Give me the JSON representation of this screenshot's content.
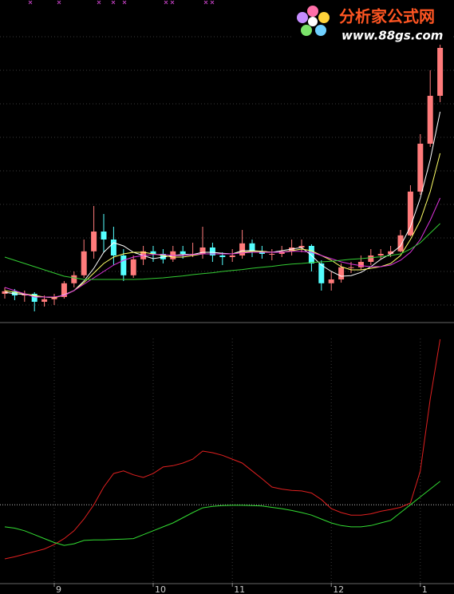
{
  "chart_data": [
    {
      "type": "candlestick",
      "ylim": [
        0,
        100
      ],
      "grid": true,
      "up_color": "#ff7b7b",
      "down_color": "#54ffff",
      "open": [
        8,
        8.8,
        7.5,
        8,
        5.5,
        6.3,
        7,
        11.3,
        13.8,
        21.3,
        27.5,
        25,
        20,
        13.8,
        18.8,
        21.3,
        20.5,
        18.8,
        21.3,
        20.5,
        20.5,
        22.5,
        20,
        19.5,
        20,
        23.8,
        21.3,
        20.5,
        20.5,
        21.3,
        22.5,
        23,
        17.5,
        11.3,
        12.5,
        16.3,
        16.3,
        18,
        20,
        20.5,
        21.3,
        26.3,
        40,
        55,
        70
      ],
      "high": [
        10,
        9.5,
        9,
        8.5,
        7.5,
        8,
        12,
        15,
        25,
        35.5,
        33,
        29,
        22,
        20,
        23,
        23,
        22,
        23,
        23,
        24,
        29,
        24,
        21,
        22,
        28,
        25,
        23,
        22,
        23,
        25,
        25,
        23.5,
        18.5,
        15,
        17.5,
        18,
        20,
        22,
        22,
        23,
        28,
        42,
        58,
        78,
        95
      ],
      "low": [
        6.5,
        6,
        5.5,
        2.5,
        4,
        4.5,
        6.5,
        10,
        13,
        19,
        21,
        17,
        12,
        13,
        17,
        18,
        17.5,
        18,
        19,
        19.5,
        19,
        18,
        17,
        18,
        19,
        19.5,
        19,
        18.5,
        19.5,
        20,
        21,
        15,
        9,
        9,
        11.5,
        14.5,
        15.5,
        17,
        19,
        19.5,
        21,
        26,
        39,
        54,
        68
      ],
      "close": [
        8.8,
        7.5,
        8,
        5.5,
        6.3,
        7,
        11.3,
        13.8,
        21.3,
        27.5,
        25,
        20,
        13.8,
        18.8,
        21.3,
        20.5,
        18.8,
        21.3,
        20.5,
        20.5,
        22.5,
        20,
        19.5,
        20,
        23.8,
        21.3,
        20.5,
        20.5,
        21.3,
        22.5,
        23,
        17.5,
        11.3,
        12.5,
        16.3,
        16.3,
        18,
        20,
        20.5,
        21.3,
        26.3,
        40,
        55,
        70,
        85
      ],
      "series": [
        {
          "color": "#ffffff",
          "values": [
            8.5,
            8,
            7.8,
            7.3,
            7,
            6.8,
            7.7,
            9,
            12,
            16,
            21,
            24,
            23,
            21,
            20,
            19,
            19.5,
            20,
            20.3,
            20.3,
            21,
            21,
            20.7,
            20.5,
            21.5,
            21.5,
            21.3,
            21,
            21.5,
            22,
            22.5,
            20,
            17,
            15,
            13.5,
            13.7,
            14.7,
            16.5,
            18.8,
            20.5,
            23,
            29,
            38,
            50,
            65
          ]
        },
        {
          "color": "#ffff66",
          "values": [
            9,
            8.5,
            8,
            7.5,
            7,
            6.8,
            7.5,
            9,
            11.5,
            14.5,
            17.5,
            19.5,
            20.5,
            21,
            21,
            20.5,
            20,
            19.5,
            19.5,
            20,
            20.5,
            20.5,
            20.5,
            20.5,
            21,
            21.3,
            21.3,
            21,
            21,
            21.5,
            22,
            21.5,
            20,
            18.5,
            16.5,
            15.5,
            15.5,
            16,
            16.5,
            17.5,
            20,
            25,
            31,
            40,
            52
          ]
        },
        {
          "color": "#dd33dd",
          "values": [
            10,
            9,
            8,
            7,
            7,
            7,
            7.5,
            9,
            11,
            13,
            15,
            17,
            18.5,
            19.5,
            20,
            20.3,
            20.3,
            20,
            20,
            20.3,
            20.5,
            20.5,
            20.5,
            20.5,
            20.8,
            21,
            21,
            21,
            21,
            21.3,
            21.3,
            21,
            20,
            19,
            18,
            17.3,
            16.8,
            16.5,
            16.5,
            17,
            18.5,
            21,
            25,
            31,
            38
          ]
        },
        {
          "color": "#33cc33",
          "values": [
            19.5,
            18.5,
            17.5,
            16.5,
            15.5,
            14.5,
            13.5,
            13,
            12.5,
            12.5,
            12.5,
            12.5,
            12.5,
            12.5,
            12.6,
            12.8,
            13,
            13.3,
            13.6,
            14,
            14.3,
            14.6,
            15,
            15.3,
            15.6,
            16,
            16.3,
            16.6,
            17,
            17.3,
            17.5,
            17.8,
            18,
            18.2,
            18.5,
            18.8,
            19,
            19.3,
            19.6,
            20,
            20.5,
            22,
            24,
            27,
            30
          ]
        }
      ]
    },
    {
      "type": "line",
      "ylim": [
        -30,
        70
      ],
      "hline": 0,
      "categories": [
        null,
        null,
        null,
        null,
        null,
        "9",
        null,
        null,
        null,
        null,
        null,
        null,
        null,
        null,
        null,
        "10",
        null,
        null,
        null,
        null,
        null,
        null,
        null,
        "11",
        null,
        null,
        null,
        null,
        null,
        null,
        null,
        null,
        null,
        "12",
        null,
        null,
        null,
        null,
        null,
        null,
        null,
        null,
        "1",
        null,
        null
      ],
      "series": [
        {
          "color": "#e02020",
          "values": [
            -20.8,
            -20,
            -19,
            -18,
            -17,
            -15.3,
            -13,
            -10,
            -5.5,
            0,
            6.8,
            12,
            13,
            11.5,
            10.5,
            12,
            14.5,
            15,
            16,
            17.5,
            20.6,
            20,
            19,
            17.5,
            16,
            13,
            10,
            6.8,
            6,
            5.5,
            5.3,
            4.5,
            2,
            -1.5,
            -3,
            -4,
            -4,
            -3.5,
            -2.5,
            -1.8,
            -1,
            0.7,
            13,
            40.6,
            63.6
          ]
        },
        {
          "color": "#33dd33",
          "values": [
            -8.5,
            -9,
            -10,
            -11.5,
            -13,
            -14.5,
            -15.6,
            -15,
            -13.7,
            -13.5,
            -13.5,
            -13.3,
            -13.2,
            -13,
            -11.5,
            -10,
            -8.5,
            -7,
            -5,
            -3,
            -1.2,
            -0.6,
            -0.3,
            -0.2,
            -0.2,
            -0.3,
            -0.5,
            -1,
            -1.5,
            -2.2,
            -3,
            -4,
            -5.5,
            -7,
            -8,
            -8.5,
            -8.5,
            -8,
            -7,
            -6,
            -3,
            0,
            3,
            6,
            9
          ]
        }
      ]
    }
  ],
  "watermark": {
    "title": "分析家公式网",
    "url": "www.88gs.com"
  }
}
